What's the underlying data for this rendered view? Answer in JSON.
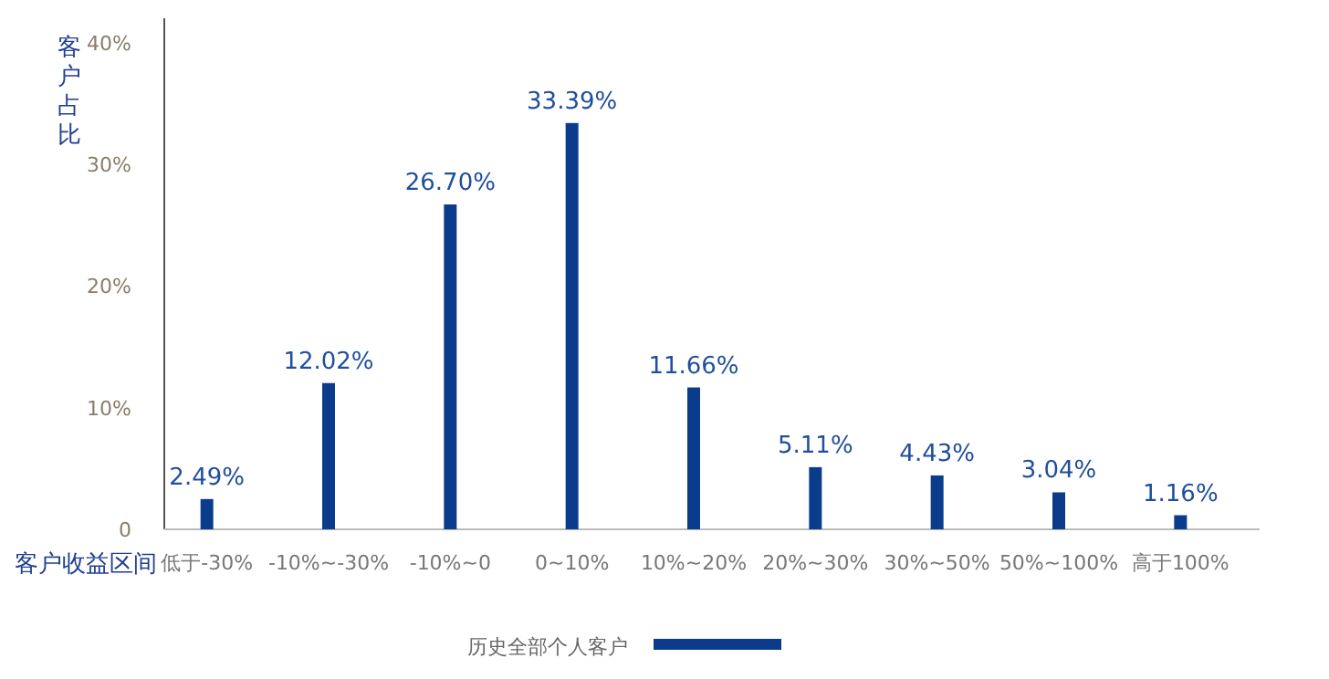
{
  "chart_data": {
    "type": "bar",
    "xlabel": "客户收益区间",
    "ylabel": "客户占比",
    "categories": [
      "低于-30%",
      "-10%~-30%",
      "-10%~0",
      "0~10%",
      "10%~20%",
      "20%~30%",
      "30%~50%",
      "50%~100%",
      "高于100%"
    ],
    "series": [
      {
        "name": "历史全部个人客户",
        "color": "#0b3c8c",
        "values": [
          2.49,
          12.02,
          26.7,
          33.39,
          11.66,
          5.11,
          4.43,
          3.04,
          1.16
        ],
        "value_labels": [
          "2.49%",
          "12.02%",
          "26.70%",
          "33.39%",
          "11.66%",
          "5.11%",
          "4.43%",
          "3.04%",
          "1.16%"
        ]
      }
    ],
    "ylim": [
      0,
      42
    ],
    "yticks": [
      0,
      {
        "value": 10,
        "label": "10%"
      },
      {
        "value": 20,
        "label": "20%"
      },
      {
        "value": 30,
        "label": "30%"
      },
      {
        "value": 40,
        "label": "40%"
      }
    ],
    "grid": false,
    "legend": "bottom"
  }
}
